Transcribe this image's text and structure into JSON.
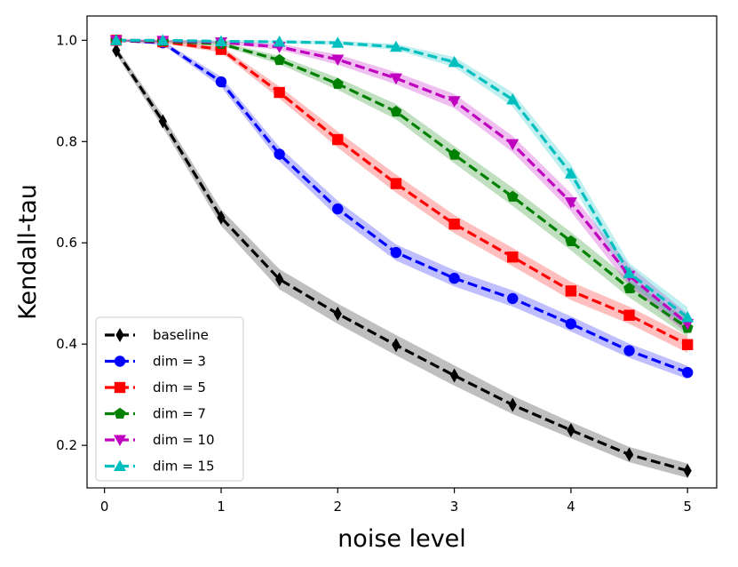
{
  "chart_data": {
    "type": "line",
    "title": "",
    "xlabel": "noise level",
    "ylabel": "Kendall-tau",
    "xlim": [
      -0.15,
      5.25
    ],
    "ylim": [
      0.116,
      1.048
    ],
    "xticks": [
      0,
      1,
      2,
      3,
      4,
      5
    ],
    "xtick_labels": [
      "0",
      "1",
      "2",
      "3",
      "4",
      "5"
    ],
    "yticks": [
      0.2,
      0.4,
      0.6,
      0.8,
      1.0
    ],
    "ytick_labels": [
      "0.2",
      "0.4",
      "0.6",
      "0.8",
      "1.0"
    ],
    "grid": false,
    "legend_position": "lower-left",
    "x": [
      0.1,
      0.5,
      1.0,
      1.5,
      2.0,
      2.5,
      3.0,
      3.5,
      4.0,
      4.5,
      5.0
    ],
    "series": [
      {
        "name": "baseline",
        "color": "#000000",
        "marker": "thin-diamond",
        "values": [
          0.98,
          0.84,
          0.65,
          0.528,
          0.46,
          0.398,
          0.338,
          0.28,
          0.23,
          0.182,
          0.15
        ],
        "band": [
          0.008,
          0.012,
          0.016,
          0.02,
          0.02,
          0.02,
          0.02,
          0.018,
          0.016,
          0.015,
          0.014
        ]
      },
      {
        "name": "dim = 3",
        "color": "#0000ff",
        "marker": "circle",
        "values": [
          1.0,
          0.995,
          0.918,
          0.775,
          0.667,
          0.581,
          0.53,
          0.49,
          0.44,
          0.387,
          0.344
        ],
        "band": [
          0.002,
          0.004,
          0.01,
          0.014,
          0.016,
          0.016,
          0.016,
          0.016,
          0.015,
          0.014,
          0.013
        ]
      },
      {
        "name": "dim = 5",
        "color": "#ff0000",
        "marker": "square",
        "values": [
          1.0,
          0.997,
          0.982,
          0.897,
          0.804,
          0.717,
          0.637,
          0.572,
          0.505,
          0.457,
          0.399
        ],
        "band": [
          0.002,
          0.003,
          0.006,
          0.012,
          0.016,
          0.018,
          0.018,
          0.018,
          0.018,
          0.017,
          0.016
        ]
      },
      {
        "name": "dim = 7",
        "color": "#008000",
        "marker": "pentagon",
        "values": [
          1.0,
          0.998,
          0.993,
          0.961,
          0.914,
          0.859,
          0.774,
          0.691,
          0.603,
          0.51,
          0.432
        ],
        "band": [
          0.002,
          0.002,
          0.004,
          0.008,
          0.012,
          0.015,
          0.017,
          0.018,
          0.018,
          0.018,
          0.017
        ]
      },
      {
        "name": "dim = 10",
        "color": "#bf00bf",
        "marker": "triangle-down",
        "values": [
          1.0,
          0.999,
          0.996,
          0.987,
          0.962,
          0.925,
          0.88,
          0.795,
          0.68,
          0.535,
          0.44
        ],
        "band": [
          0.002,
          0.002,
          0.003,
          0.006,
          0.01,
          0.012,
          0.014,
          0.016,
          0.018,
          0.02,
          0.02
        ]
      },
      {
        "name": "dim = 15",
        "color": "#00bfbf",
        "marker": "triangle-up",
        "values": [
          1.0,
          1.0,
          0.998,
          0.997,
          0.995,
          0.987,
          0.957,
          0.883,
          0.737,
          0.54,
          0.453
        ],
        "band": [
          0.001,
          0.001,
          0.002,
          0.003,
          0.004,
          0.006,
          0.01,
          0.014,
          0.018,
          0.02,
          0.02
        ]
      }
    ]
  }
}
